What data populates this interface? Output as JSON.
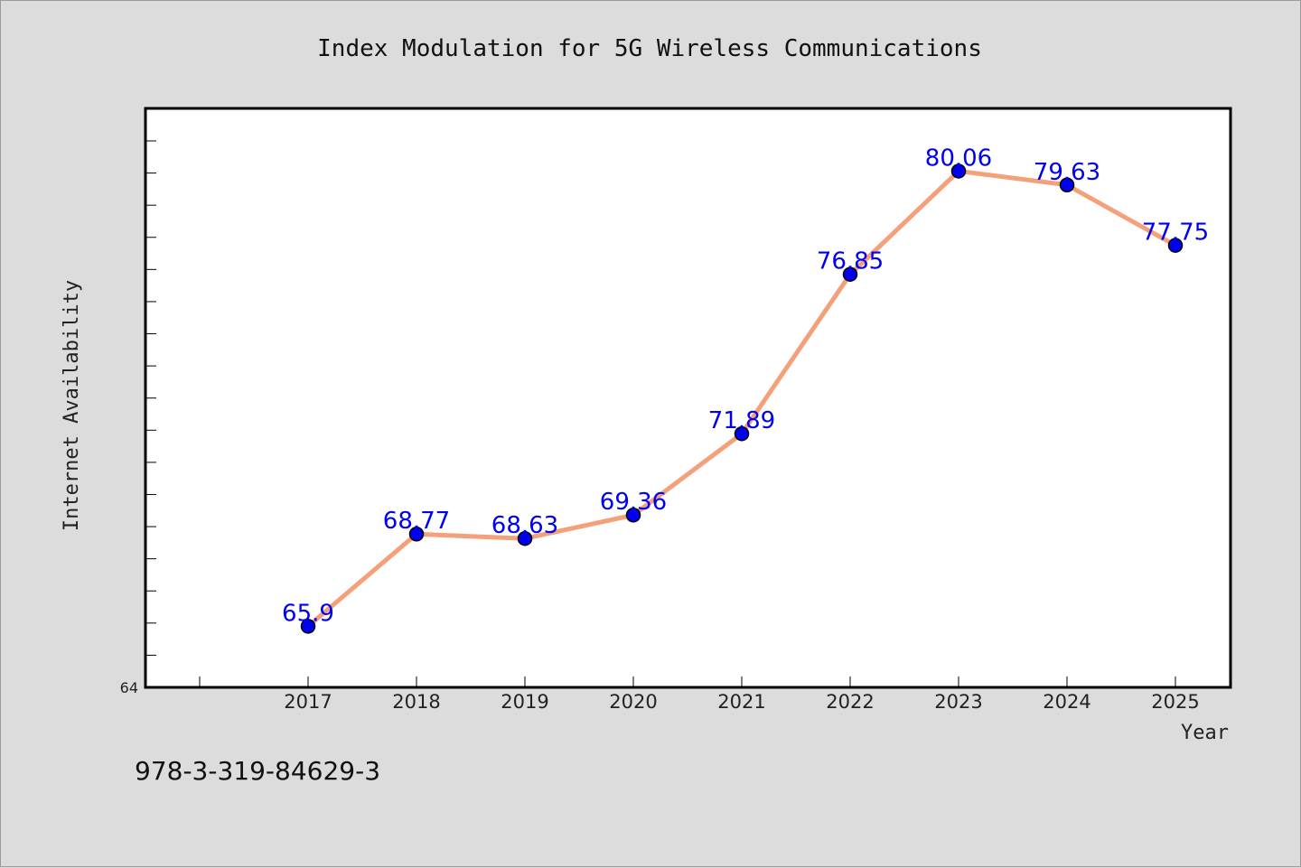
{
  "footnote": "978-3-319-84629-3",
  "chart_data": {
    "type": "line",
    "title": "Index Modulation for 5G Wireless Communications",
    "xlabel": "Year",
    "ylabel": "Internet Availability",
    "categories": [
      "2017",
      "2018",
      "2019",
      "2020",
      "2021",
      "2022",
      "2023",
      "2024",
      "2025"
    ],
    "series": [
      {
        "values": [
          65.9,
          68.77,
          68.63,
          69.36,
          71.89,
          76.85,
          80.06,
          79.63,
          77.75
        ],
        "labels": [
          "65.9",
          "68.77",
          "68.63",
          "69.36",
          "71.89",
          "76.85",
          "80.06",
          "79.63",
          "77.75"
        ]
      }
    ],
    "ylim": [
      64,
      82
    ],
    "ytick_labels": [
      "64"
    ],
    "grid": false,
    "colors": {
      "line": "#f4a07a",
      "marker": "#0000ee",
      "marker_edge": "#000000",
      "data_label": "#0000ee",
      "plot_bg": "#ffffff",
      "page_bg": "#dcdcdc"
    }
  }
}
